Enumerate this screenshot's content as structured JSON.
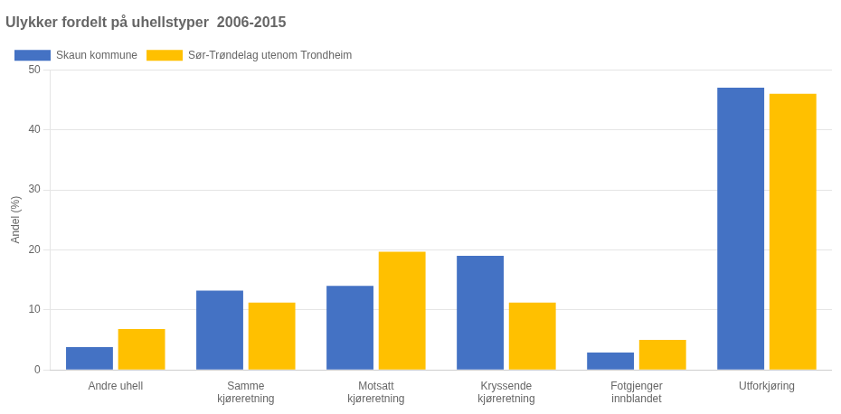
{
  "chart_data": {
    "type": "bar",
    "title": "Ulykker fordelt på uhellstyper  2006-2015",
    "ylabel": "Andel (%)",
    "categories": [
      "Andre uhell",
      "Samme\nkjøreretning",
      "Motsatt\nkjøreretning",
      "Kryssende\nkjøreretning",
      "Fotgjenger\ninnblandet",
      "Utforkjøring"
    ],
    "series": [
      {
        "name": "Skaun kommune",
        "color": "#4472C4",
        "values": [
          3.8,
          13.2,
          14.0,
          19.0,
          2.9,
          47.0
        ]
      },
      {
        "name": "Sør-Trøndelag utenom Trondheim",
        "color": "#FFC000",
        "values": [
          6.8,
          11.2,
          19.7,
          11.2,
          5.0,
          46.0
        ]
      }
    ],
    "ylim": [
      0,
      50
    ],
    "yticks": [
      0,
      10,
      20,
      30,
      40,
      50
    ],
    "grid": true,
    "legend": "upper left"
  }
}
